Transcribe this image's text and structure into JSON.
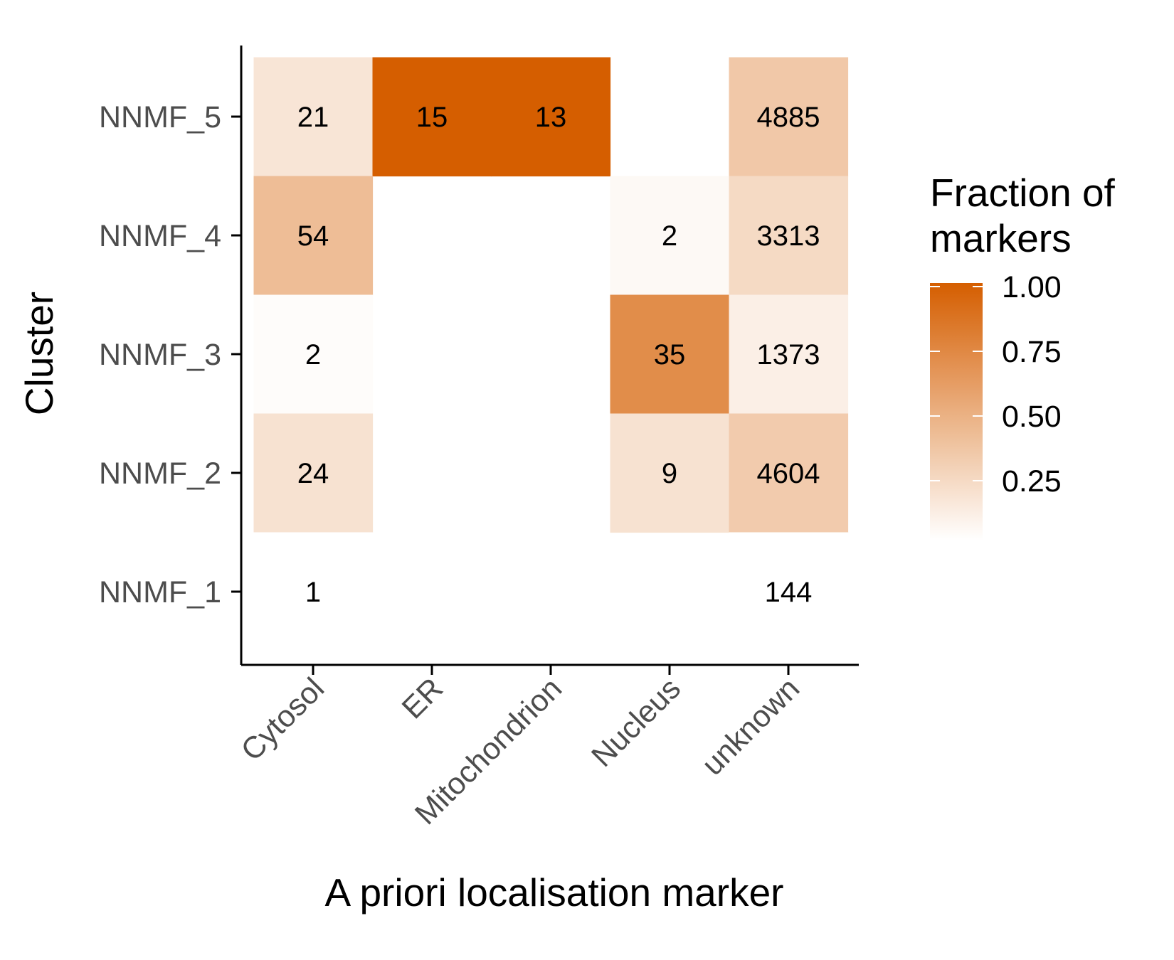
{
  "chart_data": {
    "type": "heatmap",
    "xlabel": "A priori localisation marker",
    "ylabel": "Cluster",
    "x_categories": [
      "Cytosol",
      "ER",
      "Mitochondrion",
      "Nucleus",
      "unknown"
    ],
    "y_categories": [
      "NNMF_1",
      "NNMF_2",
      "NNMF_3",
      "NNMF_4",
      "NNMF_5"
    ],
    "cells": [
      {
        "x": "Cytosol",
        "y": "NNMF_5",
        "count": 21,
        "fraction": 0.16
      },
      {
        "x": "ER",
        "y": "NNMF_5",
        "count": 15,
        "fraction": 1.0
      },
      {
        "x": "Mitochondrion",
        "y": "NNMF_5",
        "count": 13,
        "fraction": 1.0
      },
      {
        "x": "unknown",
        "y": "NNMF_5",
        "count": 4885,
        "fraction": 0.34
      },
      {
        "x": "Cytosol",
        "y": "NNMF_4",
        "count": 54,
        "fraction": 0.41
      },
      {
        "x": "Nucleus",
        "y": "NNMF_4",
        "count": 2,
        "fraction": 0.04
      },
      {
        "x": "unknown",
        "y": "NNMF_4",
        "count": 3313,
        "fraction": 0.23
      },
      {
        "x": "Cytosol",
        "y": "NNMF_3",
        "count": 2,
        "fraction": 0.02
      },
      {
        "x": "Nucleus",
        "y": "NNMF_3",
        "count": 35,
        "fraction": 0.71
      },
      {
        "x": "unknown",
        "y": "NNMF_3",
        "count": 1373,
        "fraction": 0.1
      },
      {
        "x": "Cytosol",
        "y": "NNMF_2",
        "count": 24,
        "fraction": 0.18
      },
      {
        "x": "Nucleus",
        "y": "NNMF_2",
        "count": 9,
        "fraction": 0.18
      },
      {
        "x": "unknown",
        "y": "NNMF_2",
        "count": 4604,
        "fraction": 0.32
      },
      {
        "x": "Cytosol",
        "y": "NNMF_1",
        "count": 1,
        "fraction": 0.0
      },
      {
        "x": "unknown",
        "y": "NNMF_1",
        "count": 144,
        "fraction": 0.0
      }
    ],
    "legend": {
      "title_lines": [
        "Fraction of",
        "markers"
      ],
      "ticks": [
        0.25,
        0.5,
        0.75,
        1.0
      ],
      "tick_labels": [
        "0.25",
        "0.50",
        "0.75",
        "1.00"
      ],
      "range": [
        0.0,
        1.0
      ],
      "placement": "right"
    },
    "colors": {
      "low": "#ffffff",
      "high": "#d55e00",
      "axis": "#000000",
      "tick_text": "#4d4d4d"
    },
    "grid": false
  }
}
